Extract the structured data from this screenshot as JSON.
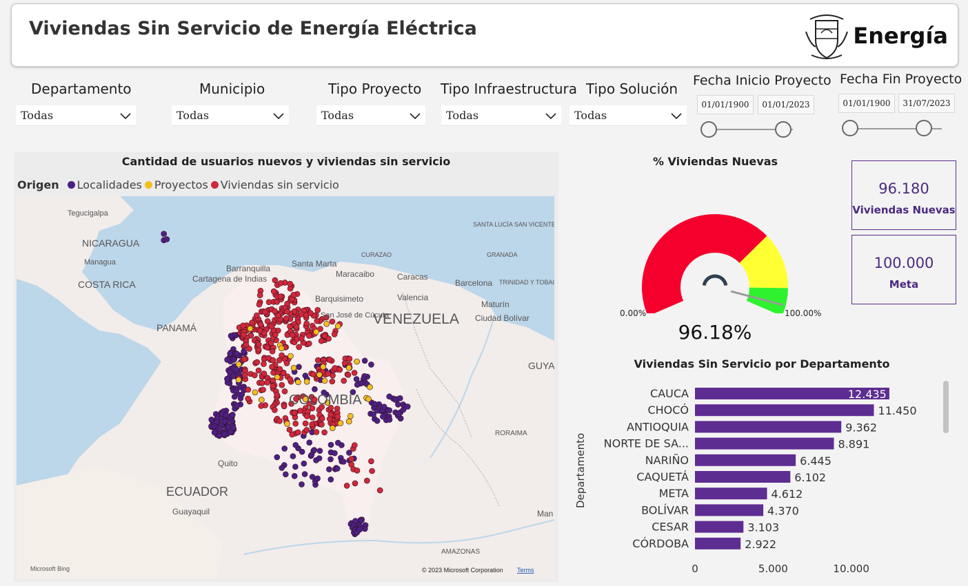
{
  "header": {
    "title": "Viviendas Sin Servicio de Energía Eléctrica",
    "brand": "Energía",
    "logo_icon": "coat-of-arms-icon"
  },
  "filters": {
    "departamento": {
      "label": "Departamento",
      "value": "Todas"
    },
    "municipio": {
      "label": "Municipio",
      "value": "Todas"
    },
    "tipo_proyecto": {
      "label": "Tipo Proyecto",
      "value": "Todas"
    },
    "tipo_infraestructura": {
      "label": "Tipo Infraestructura",
      "value": "Todas"
    },
    "tipo_solucion": {
      "label": "Tipo Solución",
      "value": "Todas"
    },
    "fecha_inicio": {
      "label": "Fecha Inicio Proyecto",
      "from": "01/01/1900",
      "to": "01/01/2023"
    },
    "fecha_fin": {
      "label": "Fecha Fin Proyecto",
      "from": "01/01/1900",
      "to": "31/07/2023"
    }
  },
  "map": {
    "title": "Cantidad de usuarios nuevos y viviendas sin servicio",
    "legend_title": "Origen",
    "legend": [
      {
        "label": "Localidades",
        "color": "#4b2184"
      },
      {
        "label": "Proyectos",
        "color": "#f2c01e"
      },
      {
        "label": "Viviendas sin servicio",
        "color": "#d0283a"
      }
    ],
    "labels": {
      "tegucigalpa": "Tegucigalpa",
      "nicaragua": "NICARAGUA",
      "managua": "Managua",
      "costa_rica": "COSTA RICA",
      "panama": "PANAMÁ",
      "barranquilla": "Barranquilla",
      "cartagena": "Cartagena de Indias",
      "santa_marta": "Santa Marta",
      "curazao": "CURAZAO",
      "maracaibo": "Maracaibo",
      "caracas": "Caracas",
      "barquisimeto": "Barquisimeto",
      "valencia": "Valencia",
      "san_jose": "San José de Cúcuta",
      "venezuela": "VENEZUELA",
      "ciudad_bolivar": "Ciudad Bolívar",
      "maturin": "Maturín",
      "barcelona": "Barcelona",
      "trinidad": "TRINIDAD Y TOBAGO",
      "granada": "GRANADA",
      "svg_label": "SANTA LUCÍA SAN VICENTE Y LAS GRANADINAS",
      "guyana": "GUYA",
      "colombia": "COLOMBIA",
      "roraima": "RORAIMA",
      "quito": "Quito",
      "ecuador": "ECUADOR",
      "guayaquil": "Guayaquil",
      "amazonas": "AMAZONAS",
      "manaus": "Man"
    },
    "bing": "Microsoft Bing",
    "copyright": "© 2023 Microsoft Corporation",
    "terms": "Terms"
  },
  "gauge": {
    "title": "% Viviendas Nuevas",
    "min_label": "0.00%",
    "max_label": "100.00%",
    "value_label": "96.18%",
    "value": 96.18,
    "bands": [
      {
        "from": 0,
        "to": 70,
        "color": "#f5002d"
      },
      {
        "from": 70,
        "to": 90,
        "color": "#ffff33"
      },
      {
        "from": 90,
        "to": 100,
        "color": "#2ef22e"
      }
    ]
  },
  "kpis": {
    "viviendas_nuevas": {
      "value": "96.180",
      "label": "Viviendas Nuevas"
    },
    "meta": {
      "value": "100.000",
      "label": "Meta"
    }
  },
  "chart_data": {
    "type": "bar",
    "orientation": "horizontal",
    "title": "Viviendas Sin Servicio por Departamento",
    "ylabel": "Departamento",
    "xlabel": "",
    "xlim": [
      0,
      12000
    ],
    "x_ticks": [
      "0",
      "5.000",
      "10.000"
    ],
    "categories": [
      "CAUCA",
      "CHOCÓ",
      "ANTIOQUIA",
      "NORTE DE SA...",
      "NARIÑO",
      "CAQUETÁ",
      "META",
      "BOLÍVAR",
      "CESAR",
      "CÓRDOBA"
    ],
    "values": [
      12435,
      11450,
      9362,
      8891,
      6445,
      6102,
      4612,
      4370,
      3103,
      2922
    ],
    "value_labels": [
      "12.435",
      "11.450",
      "9.362",
      "8.891",
      "6.445",
      "6.102",
      "4.612",
      "4.370",
      "3.103",
      "2.922"
    ],
    "bar_color": "#5e2d91"
  }
}
